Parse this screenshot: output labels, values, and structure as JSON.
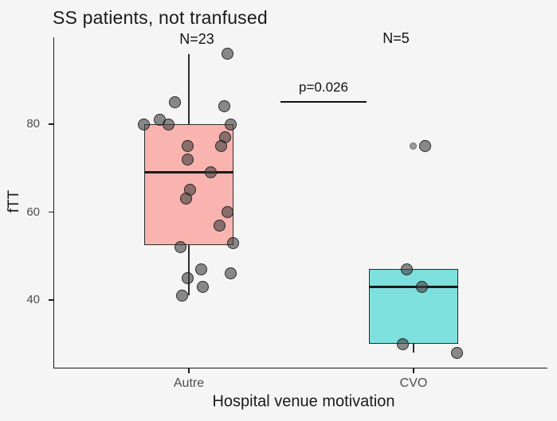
{
  "chart_data": {
    "type": "boxplot",
    "title": "SS patients, not tranfused",
    "xlabel": "Hospital venue motivation",
    "ylabel": "fTT",
    "yticks": [
      40,
      60,
      80
    ],
    "ylim": [
      24,
      100
    ],
    "grid": false,
    "legend": "none",
    "categories": [
      "Autre",
      "CVO"
    ],
    "annotation": {
      "p_label": "p=0.026"
    },
    "colors": {
      "background": "#f5f5f5",
      "axis": "#1a1a1a",
      "tick_label": "#4d4d4d",
      "box_fill_autre": "#f9b4b0",
      "box_fill_cvo": "#7ee0dd",
      "box_stroke": "#2b2b2b",
      "point_fill": "rgba(64,64,64,0.60)"
    },
    "groups": [
      {
        "label": "Autre",
        "n_label": "N=23",
        "n": 23,
        "fill": "#f9b4b0",
        "q1": 52.5,
        "median": 69,
        "q3": 80,
        "whisker_low": 41,
        "whisker_high": 96,
        "points": [
          [
            96,
            48
          ],
          [
            85,
            -18
          ],
          [
            84,
            44
          ],
          [
            81,
            -37
          ],
          [
            80,
            -57
          ],
          [
            80,
            -26
          ],
          [
            80,
            52
          ],
          [
            77,
            45
          ],
          [
            75,
            40
          ],
          [
            75,
            -2
          ],
          [
            72,
            -2
          ],
          [
            69,
            27
          ],
          [
            65,
            1
          ],
          [
            63,
            -4
          ],
          [
            60,
            48
          ],
          [
            57,
            38
          ],
          [
            53,
            55
          ],
          [
            52,
            -11
          ],
          [
            47,
            15
          ],
          [
            46,
            52
          ],
          [
            45,
            -2
          ],
          [
            43,
            17
          ],
          [
            41,
            -9
          ]
        ],
        "outlier_markers": []
      },
      {
        "label": "CVO",
        "n_label": "N=5",
        "n": 5,
        "fill": "#7ee0dd",
        "q1": 30,
        "median": 43,
        "q3": 47,
        "whisker_low": 28,
        "whisker_high": 47,
        "points": [
          [
            75,
            14
          ],
          [
            47,
            -9
          ],
          [
            43,
            10
          ],
          [
            30,
            -14
          ],
          [
            28,
            54
          ]
        ],
        "outlier_markers": [
          [
            75,
            -1
          ]
        ]
      }
    ]
  }
}
